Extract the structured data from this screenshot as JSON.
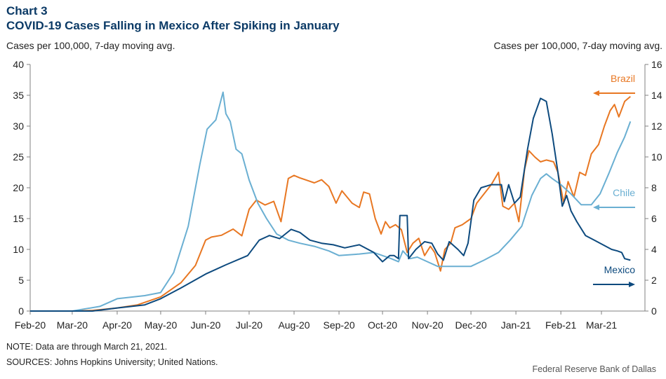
{
  "header": {
    "chart_number": "Chart 3",
    "title": "COVID-19 Cases Falling in Mexico After Spiking in January",
    "left_axis_title": "Cases per 100,000, 7-day moving avg.",
    "right_axis_title": "Cases per 100,000, 7-day moving avg."
  },
  "footer": {
    "note": "NOTE: Data are through March 21, 2021.",
    "sources": "SOURCES: Johns Hopkins University; United Nations.",
    "credit": "Federal Reserve Bank of Dallas"
  },
  "colors": {
    "brazil": "#e87722",
    "chile": "#6aafd2",
    "mexico": "#0d4a7e",
    "axis": "#808080"
  },
  "chart_data": {
    "type": "line",
    "title": "COVID-19 Cases Falling in Mexico After Spiking in January",
    "x_ticks": [
      "Feb-20",
      "Mar-20",
      "Apr-20",
      "May-20",
      "Jun-20",
      "Jul-20",
      "Aug-20",
      "Sep-20",
      "Oct-20",
      "Nov-20",
      "Dec-20",
      "Jan-21",
      "Feb-21",
      "Mar-21"
    ],
    "x_range": [
      "2020-02-01",
      "2021-03-31"
    ],
    "y_left": {
      "label": "Cases per 100,000, 7-day moving avg.",
      "range": [
        0,
        40
      ],
      "ticks": [
        0,
        5,
        10,
        15,
        20,
        25,
        30,
        35,
        40
      ]
    },
    "y_right": {
      "label": "Cases per 100,000, 7-day moving avg.",
      "range": [
        0,
        16
      ],
      "ticks": [
        0,
        2,
        4,
        6,
        8,
        10,
        12,
        14,
        16
      ]
    },
    "grid": false,
    "series": [
      {
        "name": "Brazil",
        "axis": "left",
        "points": [
          [
            "2020-02-01",
            0
          ],
          [
            "2020-03-01",
            0
          ],
          [
            "2020-03-15",
            0.1
          ],
          [
            "2020-04-01",
            0.5
          ],
          [
            "2020-04-15",
            1.0
          ],
          [
            "2020-05-01",
            2.3
          ],
          [
            "2020-05-15",
            4.6
          ],
          [
            "2020-05-25",
            7.4
          ],
          [
            "2020-06-01",
            11.5
          ],
          [
            "2020-06-05",
            12.0
          ],
          [
            "2020-06-12",
            12.3
          ],
          [
            "2020-06-20",
            13.3
          ],
          [
            "2020-06-26",
            12.2
          ],
          [
            "2020-07-01",
            16.5
          ],
          [
            "2020-07-06",
            18.0
          ],
          [
            "2020-07-12",
            17.2
          ],
          [
            "2020-07-18",
            17.8
          ],
          [
            "2020-07-23",
            14.5
          ],
          [
            "2020-07-28",
            21.5
          ],
          [
            "2020-08-01",
            22.0
          ],
          [
            "2020-08-05",
            21.6
          ],
          [
            "2020-08-10",
            21.2
          ],
          [
            "2020-08-15",
            20.8
          ],
          [
            "2020-08-20",
            21.3
          ],
          [
            "2020-08-25",
            20.2
          ],
          [
            "2020-08-30",
            17.5
          ],
          [
            "2020-09-03",
            19.5
          ],
          [
            "2020-09-10",
            17.5
          ],
          [
            "2020-09-15",
            16.8
          ],
          [
            "2020-09-18",
            19.3
          ],
          [
            "2020-09-22",
            19.0
          ],
          [
            "2020-09-26",
            15.0
          ],
          [
            "2020-09-30",
            12.5
          ],
          [
            "2020-10-03",
            14.5
          ],
          [
            "2020-10-06",
            13.5
          ],
          [
            "2020-10-10",
            14.0
          ],
          [
            "2020-10-14",
            13.2
          ],
          [
            "2020-10-18",
            9.5
          ],
          [
            "2020-10-22",
            11.0
          ],
          [
            "2020-10-26",
            11.8
          ],
          [
            "2020-10-30",
            9.0
          ],
          [
            "2020-11-03",
            10.5
          ],
          [
            "2020-11-06",
            9.5
          ],
          [
            "2020-11-10",
            6.5
          ],
          [
            "2020-11-13",
            10.0
          ],
          [
            "2020-11-17",
            11.0
          ],
          [
            "2020-11-20",
            13.5
          ],
          [
            "2020-11-25",
            14.0
          ],
          [
            "2020-12-01",
            15.0
          ],
          [
            "2020-12-05",
            17.5
          ],
          [
            "2020-12-10",
            19.0
          ],
          [
            "2020-12-15",
            20.5
          ],
          [
            "2020-12-20",
            22.5
          ],
          [
            "2020-12-23",
            17.0
          ],
          [
            "2020-12-27",
            16.5
          ],
          [
            "2020-12-31",
            17.5
          ],
          [
            "2021-01-03",
            14.5
          ],
          [
            "2021-01-07",
            23.0
          ],
          [
            "2021-01-10",
            26.0
          ],
          [
            "2021-01-14",
            25.0
          ],
          [
            "2021-01-18",
            24.2
          ],
          [
            "2021-01-22",
            24.5
          ],
          [
            "2021-01-27",
            24.2
          ],
          [
            "2021-01-30",
            22.5
          ],
          [
            "2021-02-03",
            17.5
          ],
          [
            "2021-02-06",
            21.0
          ],
          [
            "2021-02-10",
            18.5
          ],
          [
            "2021-02-14",
            22.5
          ],
          [
            "2021-02-18",
            22.0
          ],
          [
            "2021-02-22",
            25.5
          ],
          [
            "2021-02-27",
            27.0
          ],
          [
            "2021-03-03",
            30.0
          ],
          [
            "2021-03-07",
            32.5
          ],
          [
            "2021-03-10",
            33.5
          ],
          [
            "2021-03-13",
            31.5
          ],
          [
            "2021-03-17",
            34.0
          ],
          [
            "2021-03-21",
            34.8
          ]
        ]
      },
      {
        "name": "Chile",
        "axis": "right",
        "points": [
          [
            "2020-02-01",
            0
          ],
          [
            "2020-03-01",
            0
          ],
          [
            "2020-03-20",
            0.3
          ],
          [
            "2020-04-01",
            0.8
          ],
          [
            "2020-04-20",
            1.0
          ],
          [
            "2020-05-01",
            1.2
          ],
          [
            "2020-05-10",
            2.5
          ],
          [
            "2020-05-20",
            5.5
          ],
          [
            "2020-05-28",
            9.5
          ],
          [
            "2020-06-02",
            11.8
          ],
          [
            "2020-06-08",
            12.4
          ],
          [
            "2020-06-13",
            14.2
          ],
          [
            "2020-06-15",
            12.8
          ],
          [
            "2020-06-18",
            12.3
          ],
          [
            "2020-06-22",
            10.5
          ],
          [
            "2020-06-26",
            10.2
          ],
          [
            "2020-07-01",
            8.5
          ],
          [
            "2020-07-07",
            7.0
          ],
          [
            "2020-07-13",
            6.0
          ],
          [
            "2020-07-20",
            5.0
          ],
          [
            "2020-07-28",
            4.6
          ],
          [
            "2020-08-05",
            4.4
          ],
          [
            "2020-08-15",
            4.2
          ],
          [
            "2020-08-25",
            3.9
          ],
          [
            "2020-09-01",
            3.6
          ],
          [
            "2020-09-15",
            3.7
          ],
          [
            "2020-09-25",
            3.8
          ],
          [
            "2020-10-01",
            3.6
          ],
          [
            "2020-10-07",
            3.4
          ],
          [
            "2020-10-12",
            3.2
          ],
          [
            "2020-10-15",
            3.9
          ],
          [
            "2020-10-20",
            3.4
          ],
          [
            "2020-10-25",
            3.5
          ],
          [
            "2020-11-01",
            3.2
          ],
          [
            "2020-11-08",
            2.9
          ],
          [
            "2020-11-15",
            2.9
          ],
          [
            "2020-11-25",
            2.9
          ],
          [
            "2020-12-01",
            2.9
          ],
          [
            "2020-12-10",
            3.3
          ],
          [
            "2020-12-20",
            3.8
          ],
          [
            "2020-12-28",
            4.6
          ],
          [
            "2021-01-05",
            5.5
          ],
          [
            "2021-01-12",
            7.5
          ],
          [
            "2021-01-18",
            8.6
          ],
          [
            "2021-01-22",
            8.9
          ],
          [
            "2021-01-26",
            8.6
          ],
          [
            "2021-02-01",
            8.2
          ],
          [
            "2021-02-08",
            7.6
          ],
          [
            "2021-02-15",
            6.9
          ],
          [
            "2021-02-22",
            6.9
          ],
          [
            "2021-02-28",
            7.6
          ],
          [
            "2021-03-06",
            8.9
          ],
          [
            "2021-03-12",
            10.3
          ],
          [
            "2021-03-17",
            11.3
          ],
          [
            "2021-03-21",
            12.3
          ]
        ]
      },
      {
        "name": "Mexico",
        "axis": "right",
        "points": [
          [
            "2020-02-01",
            0
          ],
          [
            "2020-03-15",
            0
          ],
          [
            "2020-04-01",
            0.2
          ],
          [
            "2020-04-20",
            0.4
          ],
          [
            "2020-05-01",
            0.8
          ],
          [
            "2020-05-15",
            1.5
          ],
          [
            "2020-06-01",
            2.4
          ],
          [
            "2020-06-15",
            3.0
          ],
          [
            "2020-06-30",
            3.6
          ],
          [
            "2020-07-08",
            4.6
          ],
          [
            "2020-07-15",
            4.9
          ],
          [
            "2020-07-22",
            4.7
          ],
          [
            "2020-07-30",
            5.3
          ],
          [
            "2020-08-05",
            5.1
          ],
          [
            "2020-08-12",
            4.6
          ],
          [
            "2020-08-20",
            4.4
          ],
          [
            "2020-08-28",
            4.3
          ],
          [
            "2020-09-05",
            4.1
          ],
          [
            "2020-09-15",
            4.3
          ],
          [
            "2020-09-25",
            3.8
          ],
          [
            "2020-10-01",
            3.2
          ],
          [
            "2020-10-06",
            3.6
          ],
          [
            "2020-10-09",
            3.6
          ],
          [
            "2020-10-12",
            3.4
          ],
          [
            "2020-10-13",
            6.2
          ],
          [
            "2020-10-18",
            6.2
          ],
          [
            "2020-10-19",
            3.4
          ],
          [
            "2020-10-24",
            4.0
          ],
          [
            "2020-10-30",
            4.5
          ],
          [
            "2020-11-04",
            4.4
          ],
          [
            "2020-11-08",
            3.7
          ],
          [
            "2020-11-12",
            3.3
          ],
          [
            "2020-11-16",
            4.5
          ],
          [
            "2020-11-22",
            4.0
          ],
          [
            "2020-11-26",
            3.6
          ],
          [
            "2020-11-29",
            4.4
          ],
          [
            "2020-12-03",
            7.2
          ],
          [
            "2020-12-08",
            8.0
          ],
          [
            "2020-12-15",
            8.2
          ],
          [
            "2020-12-22",
            8.2
          ],
          [
            "2020-12-24",
            7.1
          ],
          [
            "2020-12-27",
            8.2
          ],
          [
            "2020-12-31",
            7.0
          ],
          [
            "2021-01-04",
            7.4
          ],
          [
            "2021-01-09",
            10.5
          ],
          [
            "2021-01-13",
            12.5
          ],
          [
            "2021-01-18",
            13.8
          ],
          [
            "2021-01-22",
            13.6
          ],
          [
            "2021-01-26",
            11.5
          ],
          [
            "2021-01-30",
            9.0
          ],
          [
            "2021-02-02",
            6.8
          ],
          [
            "2021-02-05",
            7.5
          ],
          [
            "2021-02-08",
            6.5
          ],
          [
            "2021-02-12",
            5.8
          ],
          [
            "2021-02-18",
            4.9
          ],
          [
            "2021-02-24",
            4.6
          ],
          [
            "2021-03-02",
            4.3
          ],
          [
            "2021-03-08",
            4.0
          ],
          [
            "2021-03-12",
            3.9
          ],
          [
            "2021-03-15",
            3.8
          ],
          [
            "2021-03-17",
            3.4
          ],
          [
            "2021-03-21",
            3.3
          ]
        ]
      }
    ]
  }
}
